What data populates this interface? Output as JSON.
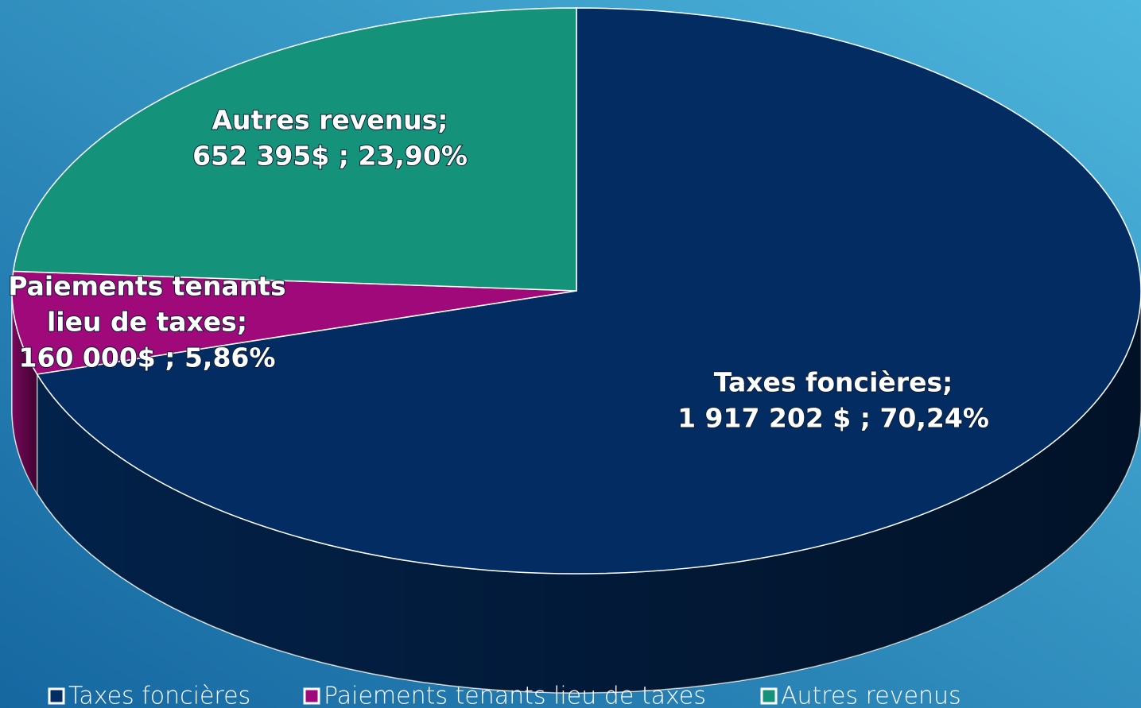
{
  "chart_data": {
    "type": "pie3d",
    "categories": [
      "Taxes foncières",
      "Paiements tenants lieu de taxes",
      "Autres revenus"
    ],
    "values": [
      1917202,
      160000,
      652395
    ],
    "value_labels": [
      "1 917 202 $ ; 70,24%",
      "160 000$ ; 5,86%",
      "652 395$ ; 23,90%"
    ],
    "label_lines": [
      [
        "Taxes foncières;"
      ],
      [
        "Paiements tenants",
        "lieu de taxes;"
      ],
      [
        "Autres revenus;"
      ]
    ],
    "colors": [
      "#032d62",
      "#a0097a",
      "#14937a"
    ],
    "legend": "bottom"
  }
}
